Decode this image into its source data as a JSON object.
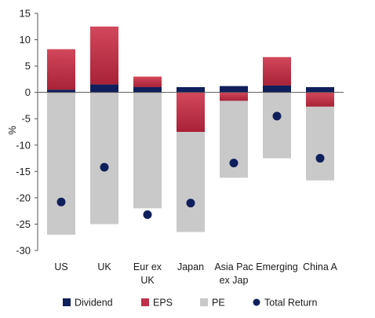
{
  "chart_data": {
    "type": "bar",
    "stacked": true,
    "categories": [
      [
        "US"
      ],
      [
        "UK"
      ],
      [
        "Eur ex",
        "UK"
      ],
      [
        "Japan"
      ],
      [
        "Asia Pac",
        "ex Jap"
      ],
      [
        "Emerging"
      ],
      [
        "China A"
      ]
    ],
    "series": [
      {
        "name": "Dividend",
        "color": "#0f1f5c",
        "values": [
          0.5,
          1.5,
          1.0,
          1.0,
          1.2,
          1.3,
          1.0
        ]
      },
      {
        "name": "EPS",
        "color": "#c0304a",
        "values": [
          7.7,
          11.0,
          2.0,
          -7.5,
          -1.6,
          5.4,
          -2.7
        ]
      },
      {
        "name": "PE",
        "color": "#c9c9c9",
        "values": [
          -27.0,
          -25.0,
          -22.0,
          -19.0,
          -14.6,
          -12.5,
          -14.0
        ]
      }
    ],
    "total_return": {
      "name": "Total Return",
      "color": "#0f1f5c",
      "values": [
        -20.8,
        -14.2,
        -23.2,
        -21.0,
        -13.4,
        -4.5,
        -12.5
      ]
    },
    "ylabel": "%",
    "ylim": [
      -30,
      15
    ],
    "yticks": [
      15,
      10,
      5,
      0,
      -5,
      -10,
      -15,
      -20,
      -25,
      -30
    ],
    "grid": false,
    "legend_position": "bottom"
  }
}
